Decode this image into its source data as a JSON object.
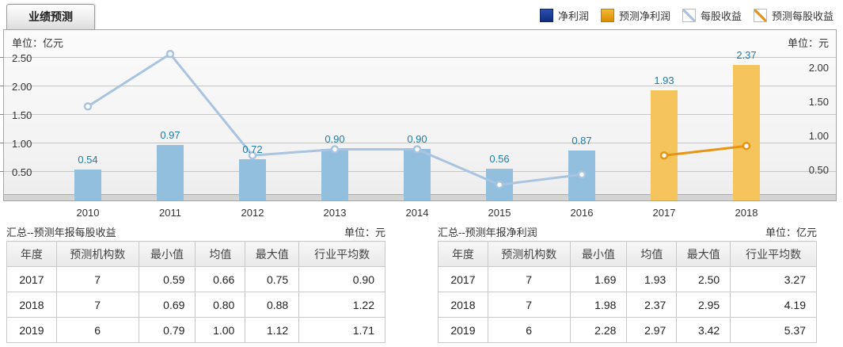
{
  "tab": {
    "label": "业绩预测"
  },
  "legend": [
    {
      "label": "净利润",
      "type": "fill",
      "color": "#16388e"
    },
    {
      "label": "预测净利润",
      "type": "fill",
      "color": "#e59b00"
    },
    {
      "label": "每股收益",
      "type": "diag",
      "color": "#a8c4e0"
    },
    {
      "label": "预测每股收益",
      "type": "diag",
      "color": "#e89413"
    }
  ],
  "chart_data": {
    "type": "bar+line (dual axis)",
    "categories": [
      "2010",
      "2011",
      "2012",
      "2013",
      "2014",
      "2015",
      "2016",
      "2017",
      "2018"
    ],
    "series": [
      {
        "name": "净利润",
        "type": "bar",
        "axis": "left",
        "color": "#92bfdd",
        "values": [
          0.54,
          0.97,
          0.72,
          0.9,
          0.9,
          0.56,
          0.87,
          null,
          null
        ]
      },
      {
        "name": "预测净利润",
        "type": "bar",
        "axis": "left",
        "color": "#f6c45c",
        "values": [
          null,
          null,
          null,
          null,
          null,
          null,
          null,
          1.93,
          2.37
        ]
      },
      {
        "name": "每股收益",
        "type": "line",
        "axis": "right",
        "color": "#a8c4e0",
        "values": [
          1.38,
          2.15,
          0.66,
          0.75,
          0.75,
          0.23,
          0.38,
          null,
          null
        ]
      },
      {
        "name": "预测每股收益",
        "type": "line",
        "axis": "right",
        "color": "#e89413",
        "values": [
          null,
          null,
          null,
          null,
          null,
          null,
          null,
          0.66,
          0.8
        ]
      }
    ],
    "bar_labels": [
      "0.54",
      "0.97",
      "0.72",
      "0.90",
      "0.90",
      "0.56",
      "0.87",
      "1.93",
      "2.37"
    ],
    "left_axis": {
      "unit_label": "单位：亿元",
      "ticks": [
        "0.50",
        "1.00",
        "1.50",
        "2.00",
        "2.50"
      ],
      "range": [
        0,
        2.97
      ]
    },
    "right_axis": {
      "unit_label": "单位：元",
      "ticks": [
        "0.50",
        "1.00",
        "1.50",
        "2.00"
      ],
      "range": [
        0,
        2.5
      ]
    },
    "grid": true,
    "legend_position": "top-right"
  },
  "tables": [
    {
      "title": "汇总--预测年报每股收益",
      "unit": "单位：元",
      "headers": [
        "年度",
        "预测机构数",
        "最小值",
        "均值",
        "最大值",
        "行业平均数"
      ],
      "rows": [
        [
          "2017",
          "7",
          "0.59",
          "0.66",
          "0.75",
          "0.90"
        ],
        [
          "2018",
          "7",
          "0.69",
          "0.80",
          "0.88",
          "1.22"
        ],
        [
          "2019",
          "6",
          "0.79",
          "1.00",
          "1.12",
          "1.71"
        ]
      ]
    },
    {
      "title": "汇总--预测年报净利润",
      "unit": "单位：亿元",
      "headers": [
        "年度",
        "预测机构数",
        "最小值",
        "均值",
        "最大值",
        "行业平均数"
      ],
      "rows": [
        [
          "2017",
          "7",
          "1.69",
          "1.93",
          "2.50",
          "3.27"
        ],
        [
          "2018",
          "7",
          "1.98",
          "2.37",
          "2.95",
          "4.19"
        ],
        [
          "2019",
          "6",
          "2.28",
          "2.97",
          "3.42",
          "5.37"
        ]
      ]
    }
  ]
}
